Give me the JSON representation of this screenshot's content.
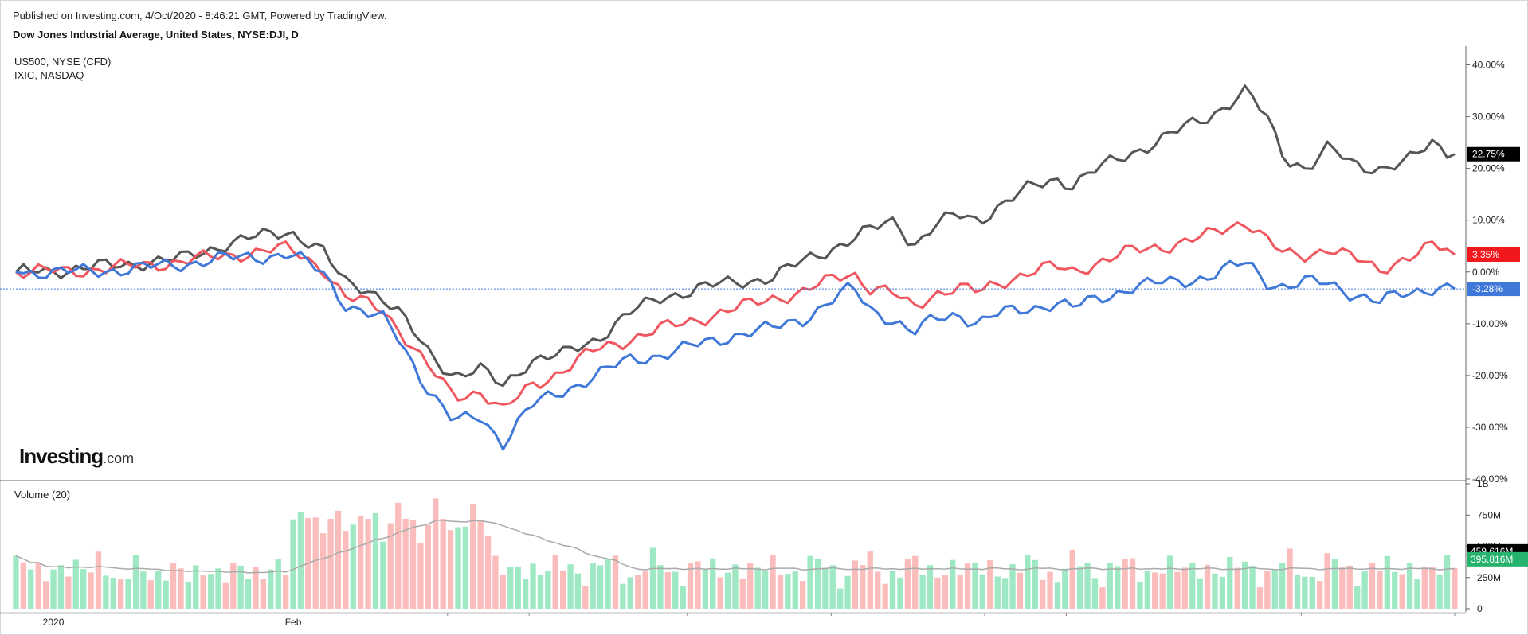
{
  "header": {
    "published": "Published on Investing.com, 4/Oct/2020 - 8:46:21 GMT, Powered by TradingView.",
    "title": "Dow Jones Industrial Average, United States, NYSE:DJI, D"
  },
  "legend": [
    "US500, NYSE (CFD)",
    "IXIC, NASDAQ"
  ],
  "volume_label": "Volume (20)",
  "logo": {
    "main": "Investing",
    "suffix": ".com"
  },
  "colors": {
    "ixic": "#555555",
    "us500": "#f0565e",
    "dji": "#3f78d8",
    "vol_up": "#9ee8c4",
    "vol_down": "#fbbcbc",
    "vol_ma": "#aaaaaa",
    "badge_dark": "#000000",
    "badge_red": "#f2161d",
    "badge_blue": "#3f78d8",
    "badge_green": "#26b36d"
  },
  "chart_data": [
    {
      "type": "line",
      "title": "Dow Jones Industrial Average, United States, NYSE:DJI, D",
      "ylabel": "",
      "ylim": [
        -40,
        43
      ],
      "y_ticks": [
        {
          "v": 40,
          "label": "40.00%"
        },
        {
          "v": 30,
          "label": "30.00%"
        },
        {
          "v": 20,
          "label": "20.00%"
        },
        {
          "v": 10,
          "label": "10.00%"
        },
        {
          "v": 0,
          "label": "0.00%"
        },
        {
          "v": -10,
          "label": "-10.00%"
        },
        {
          "v": -20,
          "label": "-20.00%"
        },
        {
          "v": -30,
          "label": "-30.00%"
        },
        {
          "v": -40,
          "label": "-40.00%"
        }
      ],
      "x_labels": [
        {
          "label": "2020",
          "idx": 5
        },
        {
          "label": "Feb",
          "idx": 37
        }
      ],
      "grid": false,
      "legend_position": "top-left",
      "n_points": 193,
      "series": [
        {
          "name": "IXIC, NASDAQ",
          "key": "ixic",
          "last_label": "22.75%",
          "anchors": [
            [
              0,
              0
            ],
            [
              10,
              0.5
            ],
            [
              20,
              1.5
            ],
            [
              30,
              2.5
            ],
            [
              37,
              5
            ],
            [
              45,
              7
            ],
            [
              50,
              8
            ],
            [
              56,
              4
            ],
            [
              60,
              -2
            ],
            [
              64,
              -3
            ],
            [
              67,
              -5
            ],
            [
              70,
              -8
            ],
            [
              75,
              -15
            ],
            [
              80,
              -20
            ],
            [
              85,
              -19
            ],
            [
              89,
              -22
            ],
            [
              94,
              -17
            ],
            [
              100,
              -16
            ],
            [
              106,
              -13
            ],
            [
              112,
              -8
            ],
            [
              118,
              -5
            ],
            [
              125,
              -3
            ],
            [
              132,
              -2
            ],
            [
              138,
              -1
            ],
            [
              144,
              2
            ],
            [
              150,
              5
            ],
            [
              156,
              8
            ],
            [
              161,
              10
            ],
            [
              164,
              5
            ],
            [
              168,
              9
            ],
            [
              172,
              11
            ],
            [
              176,
              10
            ],
            [
              180,
              13
            ],
            [
              185,
              16
            ],
            [
              190,
              18
            ],
            [
              193,
              17
            ],
            [
              198,
              20
            ],
            [
              204,
              23
            ],
            [
              210,
              26
            ],
            [
              218,
              30
            ],
            [
              225,
              35
            ],
            [
              229,
              29
            ],
            [
              232,
              22
            ],
            [
              236,
              20
            ],
            [
              240,
              24
            ],
            [
              244,
              21
            ],
            [
              249,
              20
            ],
            [
              254,
              21
            ],
            [
              259,
              25
            ],
            [
              263,
              22.75
            ]
          ]
        },
        {
          "name": "US500, NYSE (CFD)",
          "key": "us500",
          "last_label": "3.35%",
          "anchors": [
            [
              0,
              0
            ],
            [
              10,
              0.2
            ],
            [
              20,
              1
            ],
            [
              30,
              2
            ],
            [
              37,
              3
            ],
            [
              45,
              4
            ],
            [
              50,
              4.5
            ],
            [
              56,
              1
            ],
            [
              60,
              -5
            ],
            [
              64,
              -6
            ],
            [
              67,
              -7
            ],
            [
              70,
              -11
            ],
            [
              75,
              -18
            ],
            [
              80,
              -24
            ],
            [
              85,
              -23
            ],
            [
              89,
              -27
            ],
            [
              94,
              -22
            ],
            [
              100,
              -19
            ],
            [
              106,
              -15
            ],
            [
              112,
              -13
            ],
            [
              118,
              -11
            ],
            [
              125,
              -9
            ],
            [
              132,
              -7
            ],
            [
              138,
              -5
            ],
            [
              144,
              -4
            ],
            [
              150,
              -1
            ],
            [
              153,
              0
            ],
            [
              156,
              -3
            ],
            [
              160,
              -4
            ],
            [
              164,
              -7
            ],
            [
              168,
              -4
            ],
            [
              172,
              -3
            ],
            [
              176,
              -4
            ],
            [
              180,
              -2
            ],
            [
              185,
              0
            ],
            [
              190,
              1
            ],
            [
              193,
              0
            ],
            [
              198,
              2
            ],
            [
              204,
              4
            ],
            [
              210,
              5
            ],
            [
              218,
              7
            ],
            [
              225,
              10
            ],
            [
              229,
              6
            ],
            [
              232,
              3
            ],
            [
              236,
              3
            ],
            [
              240,
              5
            ],
            [
              244,
              3
            ],
            [
              249,
              0
            ],
            [
              254,
              3
            ],
            [
              259,
              5
            ],
            [
              263,
              3.35
            ]
          ]
        },
        {
          "name": "Dow Jones Industrial Average",
          "key": "dji",
          "last_label": "-3.28%",
          "anchors": [
            [
              0,
              0
            ],
            [
              10,
              0
            ],
            [
              20,
              0.5
            ],
            [
              30,
              1.5
            ],
            [
              37,
              2.5
            ],
            [
              45,
              3
            ],
            [
              50,
              3.5
            ],
            [
              56,
              0
            ],
            [
              60,
              -6
            ],
            [
              64,
              -8
            ],
            [
              67,
              -9
            ],
            [
              70,
              -13
            ],
            [
              75,
              -22
            ],
            [
              80,
              -29
            ],
            [
              85,
              -28
            ],
            [
              89,
              -33
            ],
            [
              94,
              -26
            ],
            [
              100,
              -23
            ],
            [
              106,
              -20
            ],
            [
              112,
              -17
            ],
            [
              118,
              -16
            ],
            [
              125,
              -14
            ],
            [
              132,
              -12
            ],
            [
              138,
              -11
            ],
            [
              144,
              -9
            ],
            [
              150,
              -5
            ],
            [
              153,
              -3
            ],
            [
              156,
              -7
            ],
            [
              160,
              -9
            ],
            [
              164,
              -12
            ],
            [
              168,
              -9
            ],
            [
              172,
              -8
            ],
            [
              176,
              -10
            ],
            [
              180,
              -8
            ],
            [
              185,
              -7
            ],
            [
              190,
              -6
            ],
            [
              193,
              -7
            ],
            [
              198,
              -5
            ],
            [
              204,
              -3
            ],
            [
              210,
              -2
            ],
            [
              218,
              -1
            ],
            [
              225,
              2
            ],
            [
              229,
              -2
            ],
            [
              232,
              -3
            ],
            [
              236,
              -2
            ],
            [
              240,
              -2
            ],
            [
              244,
              -4
            ],
            [
              249,
              -6
            ],
            [
              254,
              -4
            ],
            [
              259,
              -3
            ],
            [
              263,
              -3.28
            ]
          ]
        }
      ]
    },
    {
      "type": "bar",
      "title": "Volume (20)",
      "ylim": [
        0,
        1000
      ],
      "y_ticks": [
        {
          "v": 1000,
          "label": "1B"
        },
        {
          "v": 750,
          "label": "750M"
        },
        {
          "v": 500,
          "label": "500M"
        },
        {
          "v": 250,
          "label": "250M"
        },
        {
          "v": 0,
          "label": "0"
        }
      ],
      "ma_last_label": "459.616M",
      "vol_last_label": "395.816M"
    }
  ]
}
